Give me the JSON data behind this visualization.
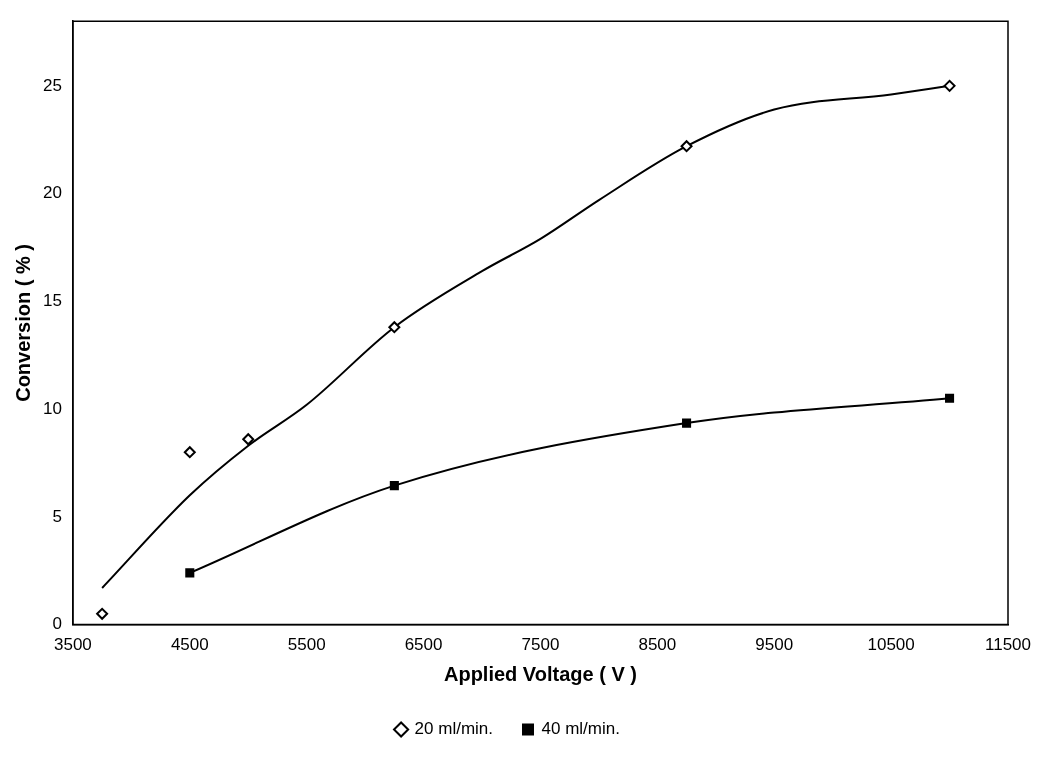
{
  "chart_data": {
    "type": "scatter",
    "xlabel": "Applied Voltage ( V )",
    "ylabel": "Conversion ( % )",
    "xlim": [
      3500,
      11500
    ],
    "xticks": [
      3500,
      4500,
      5500,
      6500,
      7500,
      8500,
      9500,
      10500,
      11500
    ],
    "ylim": [
      0,
      28
    ],
    "yticks": [
      0,
      5,
      10,
      15,
      20,
      25
    ],
    "grid": false,
    "legend": "bottom",
    "line_style": "solid",
    "series": [
      {
        "name": "20 ml/min.",
        "marker": "diamond",
        "color": "#000000",
        "x": [
          3750,
          4500,
          5000,
          6250,
          8750,
          11000
        ],
        "values": [
          0.5,
          8.0,
          8.6,
          13.8,
          22.2,
          25.0
        ]
      },
      {
        "type": "line",
        "marker": "none",
        "color": "#000000",
        "x": [
          3750,
          4500,
          5000,
          5500,
          6250,
          7000,
          7500,
          8000,
          8750,
          9500,
          10500,
          11000
        ],
        "values": [
          1.7,
          6.0,
          8.3,
          10.2,
          13.8,
          16.4,
          17.9,
          19.7,
          22.2,
          23.9,
          24.6,
          25.0
        ]
      },
      {
        "name": "40 ml/min.",
        "type": "line",
        "marker": "square",
        "color": "#000000",
        "x": [
          4500,
          6250,
          8750,
          11000
        ],
        "values": [
          2.4,
          6.45,
          9.35,
          10.5
        ]
      }
    ]
  }
}
